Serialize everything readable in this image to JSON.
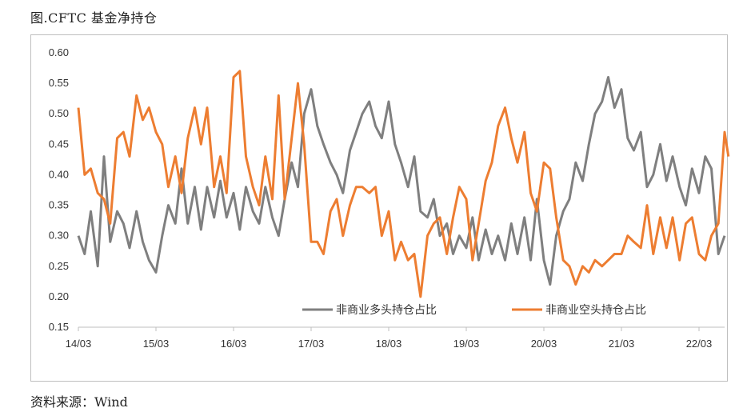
{
  "header": {
    "title": "图.CFTC 基金净持仓"
  },
  "footer": {
    "source": "资料来源：Wind"
  },
  "chart_data": {
    "type": "line",
    "title": "",
    "xlabel": "",
    "ylabel": "",
    "x_domain": [
      2014.17,
      2022.5
    ],
    "x_ticks": [
      {
        "label": "14/03",
        "x": 2014.17
      },
      {
        "label": "15/03",
        "x": 2015.17
      },
      {
        "label": "16/03",
        "x": 2016.17
      },
      {
        "label": "17/03",
        "x": 2017.17
      },
      {
        "label": "18/03",
        "x": 2018.17
      },
      {
        "label": "19/03",
        "x": 2019.17
      },
      {
        "label": "20/03",
        "x": 2020.17
      },
      {
        "label": "21/03",
        "x": 2021.17
      },
      {
        "label": "22/03",
        "x": 2022.17
      }
    ],
    "ylim": [
      0.15,
      0.6
    ],
    "y_ticks": [
      "0.15",
      "0.20",
      "0.25",
      "0.30",
      "0.35",
      "0.40",
      "0.45",
      "0.50",
      "0.55",
      "0.60"
    ],
    "grid": false,
    "legend": "bottom-right",
    "series": [
      {
        "name": "非商业多头持仓占比",
        "color": "#7f7f7f",
        "points": [
          [
            2014.17,
            0.3
          ],
          [
            2014.25,
            0.27
          ],
          [
            2014.33,
            0.34
          ],
          [
            2014.42,
            0.25
          ],
          [
            2014.5,
            0.43
          ],
          [
            2014.58,
            0.29
          ],
          [
            2014.67,
            0.34
          ],
          [
            2014.75,
            0.32
          ],
          [
            2014.83,
            0.28
          ],
          [
            2014.92,
            0.34
          ],
          [
            2015.0,
            0.29
          ],
          [
            2015.08,
            0.26
          ],
          [
            2015.17,
            0.24
          ],
          [
            2015.25,
            0.3
          ],
          [
            2015.33,
            0.35
          ],
          [
            2015.42,
            0.32
          ],
          [
            2015.5,
            0.41
          ],
          [
            2015.58,
            0.32
          ],
          [
            2015.67,
            0.38
          ],
          [
            2015.75,
            0.31
          ],
          [
            2015.83,
            0.38
          ],
          [
            2015.92,
            0.33
          ],
          [
            2016.0,
            0.39
          ],
          [
            2016.08,
            0.33
          ],
          [
            2016.17,
            0.37
          ],
          [
            2016.25,
            0.31
          ],
          [
            2016.33,
            0.38
          ],
          [
            2016.42,
            0.34
          ],
          [
            2016.5,
            0.32
          ],
          [
            2016.58,
            0.38
          ],
          [
            2016.67,
            0.33
          ],
          [
            2016.75,
            0.3
          ],
          [
            2016.83,
            0.36
          ],
          [
            2016.92,
            0.42
          ],
          [
            2017.0,
            0.38
          ],
          [
            2017.08,
            0.5
          ],
          [
            2017.17,
            0.54
          ],
          [
            2017.25,
            0.48
          ],
          [
            2017.33,
            0.45
          ],
          [
            2017.42,
            0.42
          ],
          [
            2017.5,
            0.4
          ],
          [
            2017.58,
            0.37
          ],
          [
            2017.67,
            0.44
          ],
          [
            2017.75,
            0.47
          ],
          [
            2017.83,
            0.5
          ],
          [
            2017.92,
            0.52
          ],
          [
            2018.0,
            0.48
          ],
          [
            2018.08,
            0.46
          ],
          [
            2018.17,
            0.52
          ],
          [
            2018.25,
            0.45
          ],
          [
            2018.33,
            0.42
          ],
          [
            2018.42,
            0.38
          ],
          [
            2018.5,
            0.43
          ],
          [
            2018.58,
            0.34
          ],
          [
            2018.67,
            0.33
          ],
          [
            2018.75,
            0.36
          ],
          [
            2018.83,
            0.3
          ],
          [
            2018.92,
            0.32
          ],
          [
            2019.0,
            0.27
          ],
          [
            2019.08,
            0.3
          ],
          [
            2019.17,
            0.28
          ],
          [
            2019.25,
            0.33
          ],
          [
            2019.33,
            0.26
          ],
          [
            2019.42,
            0.31
          ],
          [
            2019.5,
            0.27
          ],
          [
            2019.58,
            0.3
          ],
          [
            2019.67,
            0.26
          ],
          [
            2019.75,
            0.32
          ],
          [
            2019.83,
            0.27
          ],
          [
            2019.92,
            0.33
          ],
          [
            2020.0,
            0.26
          ],
          [
            2020.08,
            0.36
          ],
          [
            2020.17,
            0.26
          ],
          [
            2020.25,
            0.22
          ],
          [
            2020.33,
            0.3
          ],
          [
            2020.42,
            0.34
          ],
          [
            2020.5,
            0.36
          ],
          [
            2020.58,
            0.42
          ],
          [
            2020.67,
            0.39
          ],
          [
            2020.75,
            0.45
          ],
          [
            2020.83,
            0.5
          ],
          [
            2020.92,
            0.52
          ],
          [
            2021.0,
            0.56
          ],
          [
            2021.08,
            0.51
          ],
          [
            2021.17,
            0.54
          ],
          [
            2021.25,
            0.46
          ],
          [
            2021.33,
            0.44
          ],
          [
            2021.42,
            0.47
          ],
          [
            2021.5,
            0.38
          ],
          [
            2021.58,
            0.4
          ],
          [
            2021.67,
            0.45
          ],
          [
            2021.75,
            0.39
          ],
          [
            2021.83,
            0.43
          ],
          [
            2021.92,
            0.38
          ],
          [
            2022.0,
            0.35
          ],
          [
            2022.08,
            0.41
          ],
          [
            2022.17,
            0.37
          ],
          [
            2022.25,
            0.43
          ],
          [
            2022.33,
            0.41
          ],
          [
            2022.42,
            0.27
          ],
          [
            2022.5,
            0.3
          ]
        ]
      },
      {
        "name": "非商业空头持仓占比",
        "color": "#ed7d31",
        "points": [
          [
            2014.17,
            0.51
          ],
          [
            2014.25,
            0.4
          ],
          [
            2014.33,
            0.41
          ],
          [
            2014.42,
            0.37
          ],
          [
            2014.5,
            0.36
          ],
          [
            2014.58,
            0.32
          ],
          [
            2014.67,
            0.46
          ],
          [
            2014.75,
            0.47
          ],
          [
            2014.83,
            0.43
          ],
          [
            2014.92,
            0.53
          ],
          [
            2015.0,
            0.49
          ],
          [
            2015.08,
            0.51
          ],
          [
            2015.17,
            0.47
          ],
          [
            2015.25,
            0.45
          ],
          [
            2015.33,
            0.38
          ],
          [
            2015.42,
            0.43
          ],
          [
            2015.5,
            0.37
          ],
          [
            2015.58,
            0.46
          ],
          [
            2015.67,
            0.51
          ],
          [
            2015.75,
            0.45
          ],
          [
            2015.83,
            0.51
          ],
          [
            2015.92,
            0.38
          ],
          [
            2016.0,
            0.43
          ],
          [
            2016.08,
            0.37
          ],
          [
            2016.17,
            0.56
          ],
          [
            2016.25,
            0.57
          ],
          [
            2016.33,
            0.43
          ],
          [
            2016.42,
            0.38
          ],
          [
            2016.5,
            0.35
          ],
          [
            2016.58,
            0.43
          ],
          [
            2016.67,
            0.36
          ],
          [
            2016.75,
            0.53
          ],
          [
            2016.83,
            0.36
          ],
          [
            2016.92,
            0.46
          ],
          [
            2017.0,
            0.55
          ],
          [
            2017.08,
            0.45
          ],
          [
            2017.17,
            0.29
          ],
          [
            2017.25,
            0.29
          ],
          [
            2017.33,
            0.27
          ],
          [
            2017.42,
            0.34
          ],
          [
            2017.5,
            0.36
          ],
          [
            2017.58,
            0.3
          ],
          [
            2017.67,
            0.35
          ],
          [
            2017.75,
            0.38
          ],
          [
            2017.83,
            0.38
          ],
          [
            2017.92,
            0.37
          ],
          [
            2018.0,
            0.38
          ],
          [
            2018.08,
            0.3
          ],
          [
            2018.17,
            0.34
          ],
          [
            2018.25,
            0.26
          ],
          [
            2018.33,
            0.29
          ],
          [
            2018.42,
            0.26
          ],
          [
            2018.5,
            0.27
          ],
          [
            2018.58,
            0.2
          ],
          [
            2018.67,
            0.3
          ],
          [
            2018.75,
            0.32
          ],
          [
            2018.83,
            0.33
          ],
          [
            2018.92,
            0.27
          ],
          [
            2019.0,
            0.33
          ],
          [
            2019.08,
            0.38
          ],
          [
            2019.17,
            0.36
          ],
          [
            2019.25,
            0.26
          ],
          [
            2019.33,
            0.32
          ],
          [
            2019.42,
            0.39
          ],
          [
            2019.5,
            0.42
          ],
          [
            2019.58,
            0.48
          ],
          [
            2019.67,
            0.51
          ],
          [
            2019.75,
            0.46
          ],
          [
            2019.83,
            0.42
          ],
          [
            2019.92,
            0.47
          ],
          [
            2020.0,
            0.37
          ],
          [
            2020.08,
            0.34
          ],
          [
            2020.17,
            0.42
          ],
          [
            2020.25,
            0.41
          ],
          [
            2020.33,
            0.33
          ],
          [
            2020.42,
            0.26
          ],
          [
            2020.5,
            0.25
          ],
          [
            2020.58,
            0.22
          ],
          [
            2020.67,
            0.25
          ],
          [
            2020.75,
            0.24
          ],
          [
            2020.83,
            0.26
          ],
          [
            2020.92,
            0.25
          ],
          [
            2021.0,
            0.26
          ],
          [
            2021.08,
            0.27
          ],
          [
            2021.17,
            0.27
          ],
          [
            2021.25,
            0.3
          ],
          [
            2021.33,
            0.29
          ],
          [
            2021.42,
            0.28
          ],
          [
            2021.5,
            0.35
          ],
          [
            2021.58,
            0.27
          ],
          [
            2021.67,
            0.33
          ],
          [
            2021.75,
            0.28
          ],
          [
            2021.83,
            0.33
          ],
          [
            2021.92,
            0.26
          ],
          [
            2022.0,
            0.32
          ],
          [
            2022.08,
            0.33
          ],
          [
            2022.17,
            0.27
          ],
          [
            2022.25,
            0.26
          ],
          [
            2022.33,
            0.3
          ],
          [
            2022.42,
            0.32
          ],
          [
            2022.5,
            0.47
          ],
          [
            2022.55,
            0.43
          ]
        ]
      }
    ]
  }
}
